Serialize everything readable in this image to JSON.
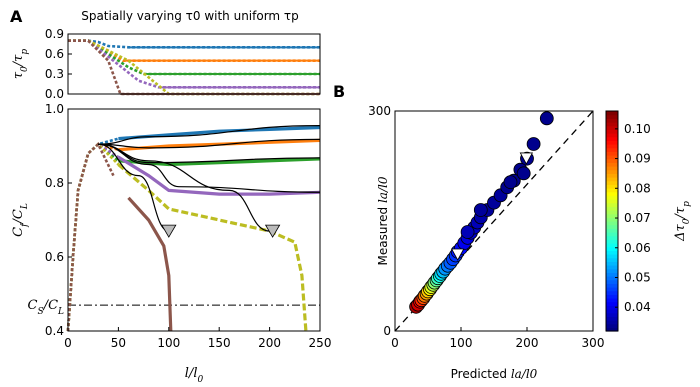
{
  "panels": {
    "a": "A",
    "b": "B"
  },
  "chart_data": [
    {
      "id": "A-top",
      "type": "line",
      "title": "Spatially varying τ0 with uniform τp",
      "ylabel": "τ0/τp",
      "ylim": [
        0,
        0.9
      ],
      "xlim": [
        0,
        250
      ],
      "ytick_labels": [
        "0.9",
        "0.6",
        "0.3",
        "0.0"
      ],
      "series": [
        {
          "color": "#1f77b4",
          "values": [
            [
              0,
              0.8
            ],
            [
              20,
              0.8
            ],
            [
              30,
              0.78
            ],
            [
              40,
              0.72
            ],
            [
              60,
              0.7
            ],
            [
              250,
              0.7
            ]
          ]
        },
        {
          "color": "#ff7f0e",
          "values": [
            [
              0,
              0.8
            ],
            [
              20,
              0.8
            ],
            [
              40,
              0.65
            ],
            [
              55,
              0.5
            ],
            [
              250,
              0.5
            ]
          ]
        },
        {
          "color": "#2ca02c",
          "values": [
            [
              0,
              0.8
            ],
            [
              20,
              0.8
            ],
            [
              60,
              0.4
            ],
            [
              75,
              0.3
            ],
            [
              250,
              0.3
            ]
          ]
        },
        {
          "color": "#9467bd",
          "values": [
            [
              0,
              0.8
            ],
            [
              20,
              0.8
            ],
            [
              70,
              0.2
            ],
            [
              90,
              0.1
            ],
            [
              250,
              0.1
            ]
          ]
        },
        {
          "color": "#bcbd22",
          "values": [
            [
              0,
              0.8
            ],
            [
              20,
              0.8
            ],
            [
              60,
              0.5
            ],
            [
              100,
              0.0
            ],
            [
              250,
              0.0
            ]
          ]
        },
        {
          "color": "#8c564b",
          "values": [
            [
              0,
              0.8
            ],
            [
              20,
              0.8
            ],
            [
              40,
              0.5
            ],
            [
              52,
              0.0
            ],
            [
              250,
              0.0
            ]
          ]
        }
      ]
    },
    {
      "id": "A-bottom",
      "type": "line",
      "xlabel": "l/l0",
      "ylabel": "Cf/CL",
      "xlim": [
        0,
        250
      ],
      "ylim": [
        0.4,
        1.0
      ],
      "xtick_labels": [
        "0",
        "50",
        "100",
        "150",
        "200",
        "250"
      ],
      "ytick_labels": [
        "1.0",
        "0.8",
        "0.6",
        "0.4"
      ],
      "cs_label": "CS/CL",
      "cs_value": 0.47,
      "series": [
        {
          "color": "#1f77b4",
          "values": [
            [
              0,
              0.4
            ],
            [
              5,
              0.6
            ],
            [
              10,
              0.78
            ],
            [
              20,
              0.88
            ],
            [
              30,
              0.905
            ],
            [
              50,
              0.92
            ],
            [
              100,
              0.93
            ],
            [
              150,
              0.94
            ],
            [
              200,
              0.945
            ],
            [
              250,
              0.95
            ]
          ]
        },
        {
          "color": "#ff7f0e",
          "values": [
            [
              0,
              0.4
            ],
            [
              5,
              0.6
            ],
            [
              10,
              0.78
            ],
            [
              20,
              0.88
            ],
            [
              30,
              0.905
            ],
            [
              50,
              0.89
            ],
            [
              100,
              0.9
            ],
            [
              150,
              0.905
            ],
            [
              200,
              0.91
            ],
            [
              250,
              0.915
            ]
          ]
        },
        {
          "color": "#2ca02c",
          "values": [
            [
              0,
              0.4
            ],
            [
              5,
              0.6
            ],
            [
              10,
              0.78
            ],
            [
              20,
              0.88
            ],
            [
              30,
              0.905
            ],
            [
              50,
              0.86
            ],
            [
              100,
              0.85
            ],
            [
              150,
              0.855
            ],
            [
              200,
              0.86
            ],
            [
              250,
              0.865
            ]
          ]
        },
        {
          "color": "#9467bd",
          "values": [
            [
              0,
              0.4
            ],
            [
              5,
              0.6
            ],
            [
              10,
              0.78
            ],
            [
              20,
              0.88
            ],
            [
              30,
              0.905
            ],
            [
              50,
              0.87
            ],
            [
              80,
              0.82
            ],
            [
              100,
              0.78
            ],
            [
              150,
              0.77
            ],
            [
              200,
              0.77
            ],
            [
              250,
              0.775
            ]
          ]
        },
        {
          "color": "#bcbd22",
          "values": [
            [
              0,
              0.4
            ],
            [
              5,
              0.6
            ],
            [
              10,
              0.78
            ],
            [
              20,
              0.88
            ],
            [
              30,
              0.905
            ],
            [
              50,
              0.85
            ],
            [
              80,
              0.78
            ],
            [
              100,
              0.73
            ],
            [
              150,
              0.7
            ],
            [
              200,
              0.67
            ],
            [
              225,
              0.64
            ],
            [
              232,
              0.55
            ],
            [
              236,
              0.4
            ]
          ]
        },
        {
          "color": "#8c564b",
          "values": [
            [
              0,
              0.4
            ],
            [
              5,
              0.6
            ],
            [
              10,
              0.78
            ],
            [
              20,
              0.88
            ],
            [
              30,
              0.905
            ],
            [
              45,
              0.82
            ],
            [
              60,
              0.76
            ],
            [
              80,
              0.7
            ],
            [
              95,
              0.63
            ],
            [
              100,
              0.55
            ],
            [
              102,
              0.4
            ]
          ]
        }
      ],
      "theory": [
        [
          [
            30,
            0.905
          ],
          [
            80,
            0.925
          ],
          [
            250,
            0.955
          ]
        ],
        [
          [
            30,
            0.905
          ],
          [
            80,
            0.895
          ],
          [
            250,
            0.918
          ]
        ],
        [
          [
            30,
            0.905
          ],
          [
            80,
            0.855
          ],
          [
            250,
            0.868
          ]
        ],
        [
          [
            30,
            0.905
          ],
          [
            80,
            0.85
          ],
          [
            110,
            0.79
          ],
          [
            250,
            0.775
          ]
        ],
        [
          [
            30,
            0.905
          ],
          [
            80,
            0.86
          ],
          [
            160,
            0.78
          ],
          [
            200,
            0.67
          ]
        ],
        [
          [
            30,
            0.905
          ],
          [
            70,
            0.82
          ],
          [
            100,
            0.67
          ]
        ]
      ],
      "triangles": [
        [
          100,
          0.67
        ],
        [
          203,
          0.67
        ]
      ]
    },
    {
      "id": "B",
      "type": "scatter",
      "xlabel": "Predicted la/l0",
      "ylabel": "Measured la/l0",
      "xlim": [
        0,
        300
      ],
      "ylim": [
        0,
        300
      ],
      "xtick_labels": [
        "0",
        "100",
        "200",
        "300"
      ],
      "ytick_labels": [
        "300",
        "0"
      ],
      "colorbar_label": "Δτ0/τp",
      "colorbar_ticks": [
        "0.10",
        "0.09",
        "0.08",
        "0.07",
        "0.06",
        "0.05",
        "0.04"
      ],
      "colorbar_range": [
        0.032,
        0.106
      ],
      "points": [
        [
          32,
          33,
          0.103
        ],
        [
          35,
          36,
          0.1
        ],
        [
          38,
          40,
          0.097
        ],
        [
          40,
          42,
          0.094
        ],
        [
          43,
          45,
          0.091
        ],
        [
          45,
          48,
          0.088
        ],
        [
          48,
          51,
          0.085
        ],
        [
          50,
          54,
          0.082
        ],
        [
          53,
          57,
          0.079
        ],
        [
          55,
          60,
          0.076
        ],
        [
          58,
          63,
          0.073
        ],
        [
          60,
          66,
          0.07
        ],
        [
          63,
          69,
          0.067
        ],
        [
          65,
          72,
          0.064
        ],
        [
          68,
          75,
          0.061
        ],
        [
          70,
          78,
          0.058
        ],
        [
          73,
          81,
          0.055
        ],
        [
          76,
          85,
          0.052
        ],
        [
          80,
          89,
          0.05
        ],
        [
          84,
          93,
          0.048
        ],
        [
          88,
          98,
          0.046
        ],
        [
          92,
          103,
          0.045
        ],
        [
          95,
          108,
          0.043
        ],
        [
          100,
          113,
          0.042
        ],
        [
          105,
          120,
          0.04
        ],
        [
          110,
          127,
          0.039
        ],
        [
          115,
          134,
          0.038
        ],
        [
          120,
          141,
          0.037
        ],
        [
          125,
          148,
          0.036
        ],
        [
          130,
          155,
          0.035
        ],
        [
          140,
          165,
          0.034
        ],
        [
          150,
          175,
          0.034
        ],
        [
          160,
          185,
          0.034
        ],
        [
          170,
          196,
          0.033
        ],
        [
          180,
          205,
          0.033
        ],
        [
          190,
          220,
          0.033
        ],
        [
          200,
          235,
          0.033
        ],
        [
          210,
          255,
          0.033
        ],
        [
          230,
          290,
          0.033
        ],
        [
          175,
          203,
          0.033
        ],
        [
          195,
          215,
          0.033
        ],
        [
          130,
          165,
          0.034
        ],
        [
          110,
          135,
          0.036
        ]
      ],
      "triangles": [
        [
          95,
          105
        ],
        [
          199,
          236
        ]
      ]
    }
  ]
}
